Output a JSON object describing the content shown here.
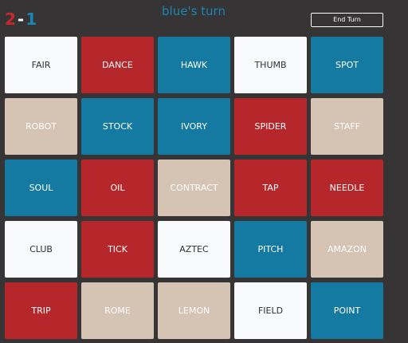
{
  "score": {
    "red": 2,
    "separator": "-",
    "blue": 1
  },
  "title": "blue's turn",
  "button": "End Turn",
  "cards": [
    {
      "word": "FAIR",
      "color": "#f8f9fb"
    },
    {
      "word": "DANCE",
      "color": "#b5272b"
    },
    {
      "word": "HAWK",
      "color": "#157aa1"
    },
    {
      "word": "THUMB",
      "color": "#f8f9fb"
    },
    {
      "word": "SPOT",
      "color": "#157aa1"
    },
    {
      "word": "ROBOT",
      "color": "#d5c3b3"
    },
    {
      "word": "STOCK",
      "color": "#157aa1"
    },
    {
      "word": "IVORY",
      "color": "#157aa1"
    },
    {
      "word": "SPIDER",
      "color": "#b5272b"
    },
    {
      "word": "STAFF",
      "color": "#d5c3b3"
    },
    {
      "word": "SOUL",
      "color": "#157aa1"
    },
    {
      "word": "OIL",
      "color": "#b5272b"
    },
    {
      "word": "CONTRACT",
      "color": "#d5c3b3"
    },
    {
      "word": "TAP",
      "color": "#b5272b"
    },
    {
      "word": "NEEDLE",
      "color": "#b5272b"
    },
    {
      "word": "CLUB",
      "color": "#f8f9fb"
    },
    {
      "word": "TICK",
      "color": "#b5272b"
    },
    {
      "word": "AZTEC",
      "color": "#f8f9fb"
    },
    {
      "word": "PITCH",
      "color": "#157aa1"
    },
    {
      "word": "AMAZON",
      "color": "#d5c3b3"
    },
    {
      "word": "TRIP",
      "color": "#b5272b"
    },
    {
      "word": "ROME",
      "color": "#d5c3b3"
    },
    {
      "word": "LEMON",
      "color": "#d5c3b3"
    },
    {
      "word": "FIELD",
      "color": "#f8f9fb"
    },
    {
      "word": "POINT",
      "color": "#157aa1"
    }
  ]
}
